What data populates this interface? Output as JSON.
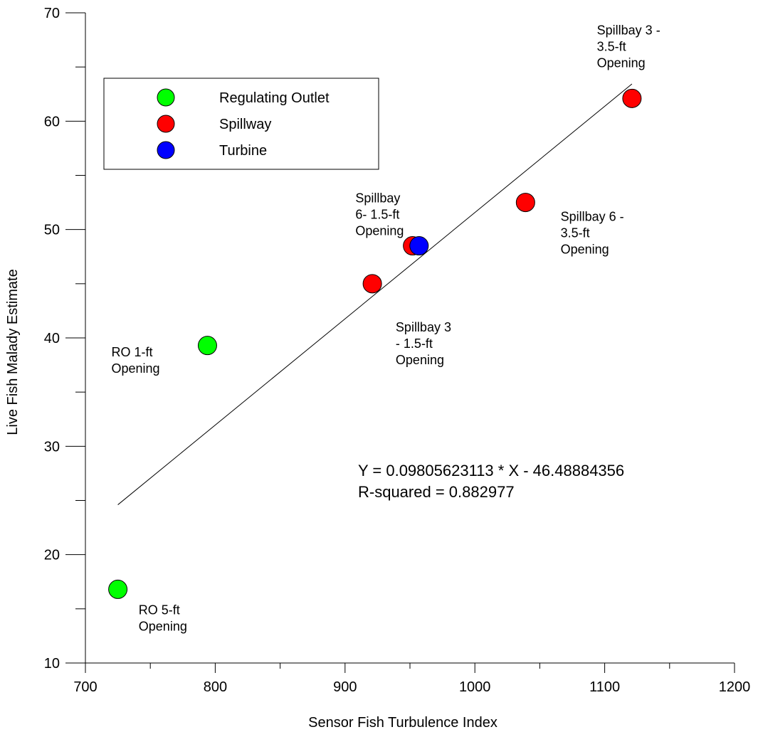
{
  "chart_data": {
    "type": "scatter",
    "title": "",
    "xlabel": "Sensor Fish Turbulence Index",
    "ylabel": "Live Fish Malady Estimate",
    "xlim": [
      700,
      1200
    ],
    "ylim": [
      10,
      70
    ],
    "x_ticks": [
      700,
      800,
      900,
      1000,
      1100,
      1200
    ],
    "y_ticks": [
      10,
      20,
      30,
      40,
      50,
      60,
      70
    ],
    "grid": false,
    "legend_position": "top-left",
    "series": [
      {
        "name": "Regulating Outlet",
        "color": "#00ff00",
        "points": [
          {
            "x": 725,
            "y": 16.8
          },
          {
            "x": 794,
            "y": 39.3
          }
        ]
      },
      {
        "name": "Spillway",
        "color": "#ff0000",
        "points": [
          {
            "x": 921,
            "y": 45.0
          },
          {
            "x": 952,
            "y": 48.5
          },
          {
            "x": 1039,
            "y": 52.5
          },
          {
            "x": 1121,
            "y": 62.1
          }
        ]
      },
      {
        "name": "Turbine",
        "color": "#0000ff",
        "points": [
          {
            "x": 957,
            "y": 48.5
          }
        ]
      }
    ],
    "fit_line": {
      "slope": 0.09805623113,
      "intercept": -46.48884356,
      "x_start": 725,
      "x_end": 1121
    },
    "equation_lines": [
      "Y = 0.09805623113 * X - 46.48884356",
      "R-squared = 0.882977"
    ],
    "annotations": [
      {
        "lines": [
          "Spillbay 3 -",
          "3.5-ft",
          "Opening"
        ],
        "x": 1094,
        "y": 68.0
      },
      {
        "lines": [
          "Spillbay",
          "6- 1.5-ft",
          "Opening"
        ],
        "x": 908,
        "y": 52.5
      },
      {
        "lines": [
          "Spillbay 6 -",
          "3.5-ft",
          "Opening"
        ],
        "x": 1066,
        "y": 50.8
      },
      {
        "lines": [
          "Spillbay 3",
          "- 1.5-ft",
          "Opening"
        ],
        "x": 939,
        "y": 40.6
      },
      {
        "lines": [
          "RO 1-ft",
          "Opening"
        ],
        "x": 720,
        "y": 38.3
      },
      {
        "lines": [
          "RO 5-ft",
          "Opening"
        ],
        "x": 741,
        "y": 14.5
      }
    ]
  }
}
